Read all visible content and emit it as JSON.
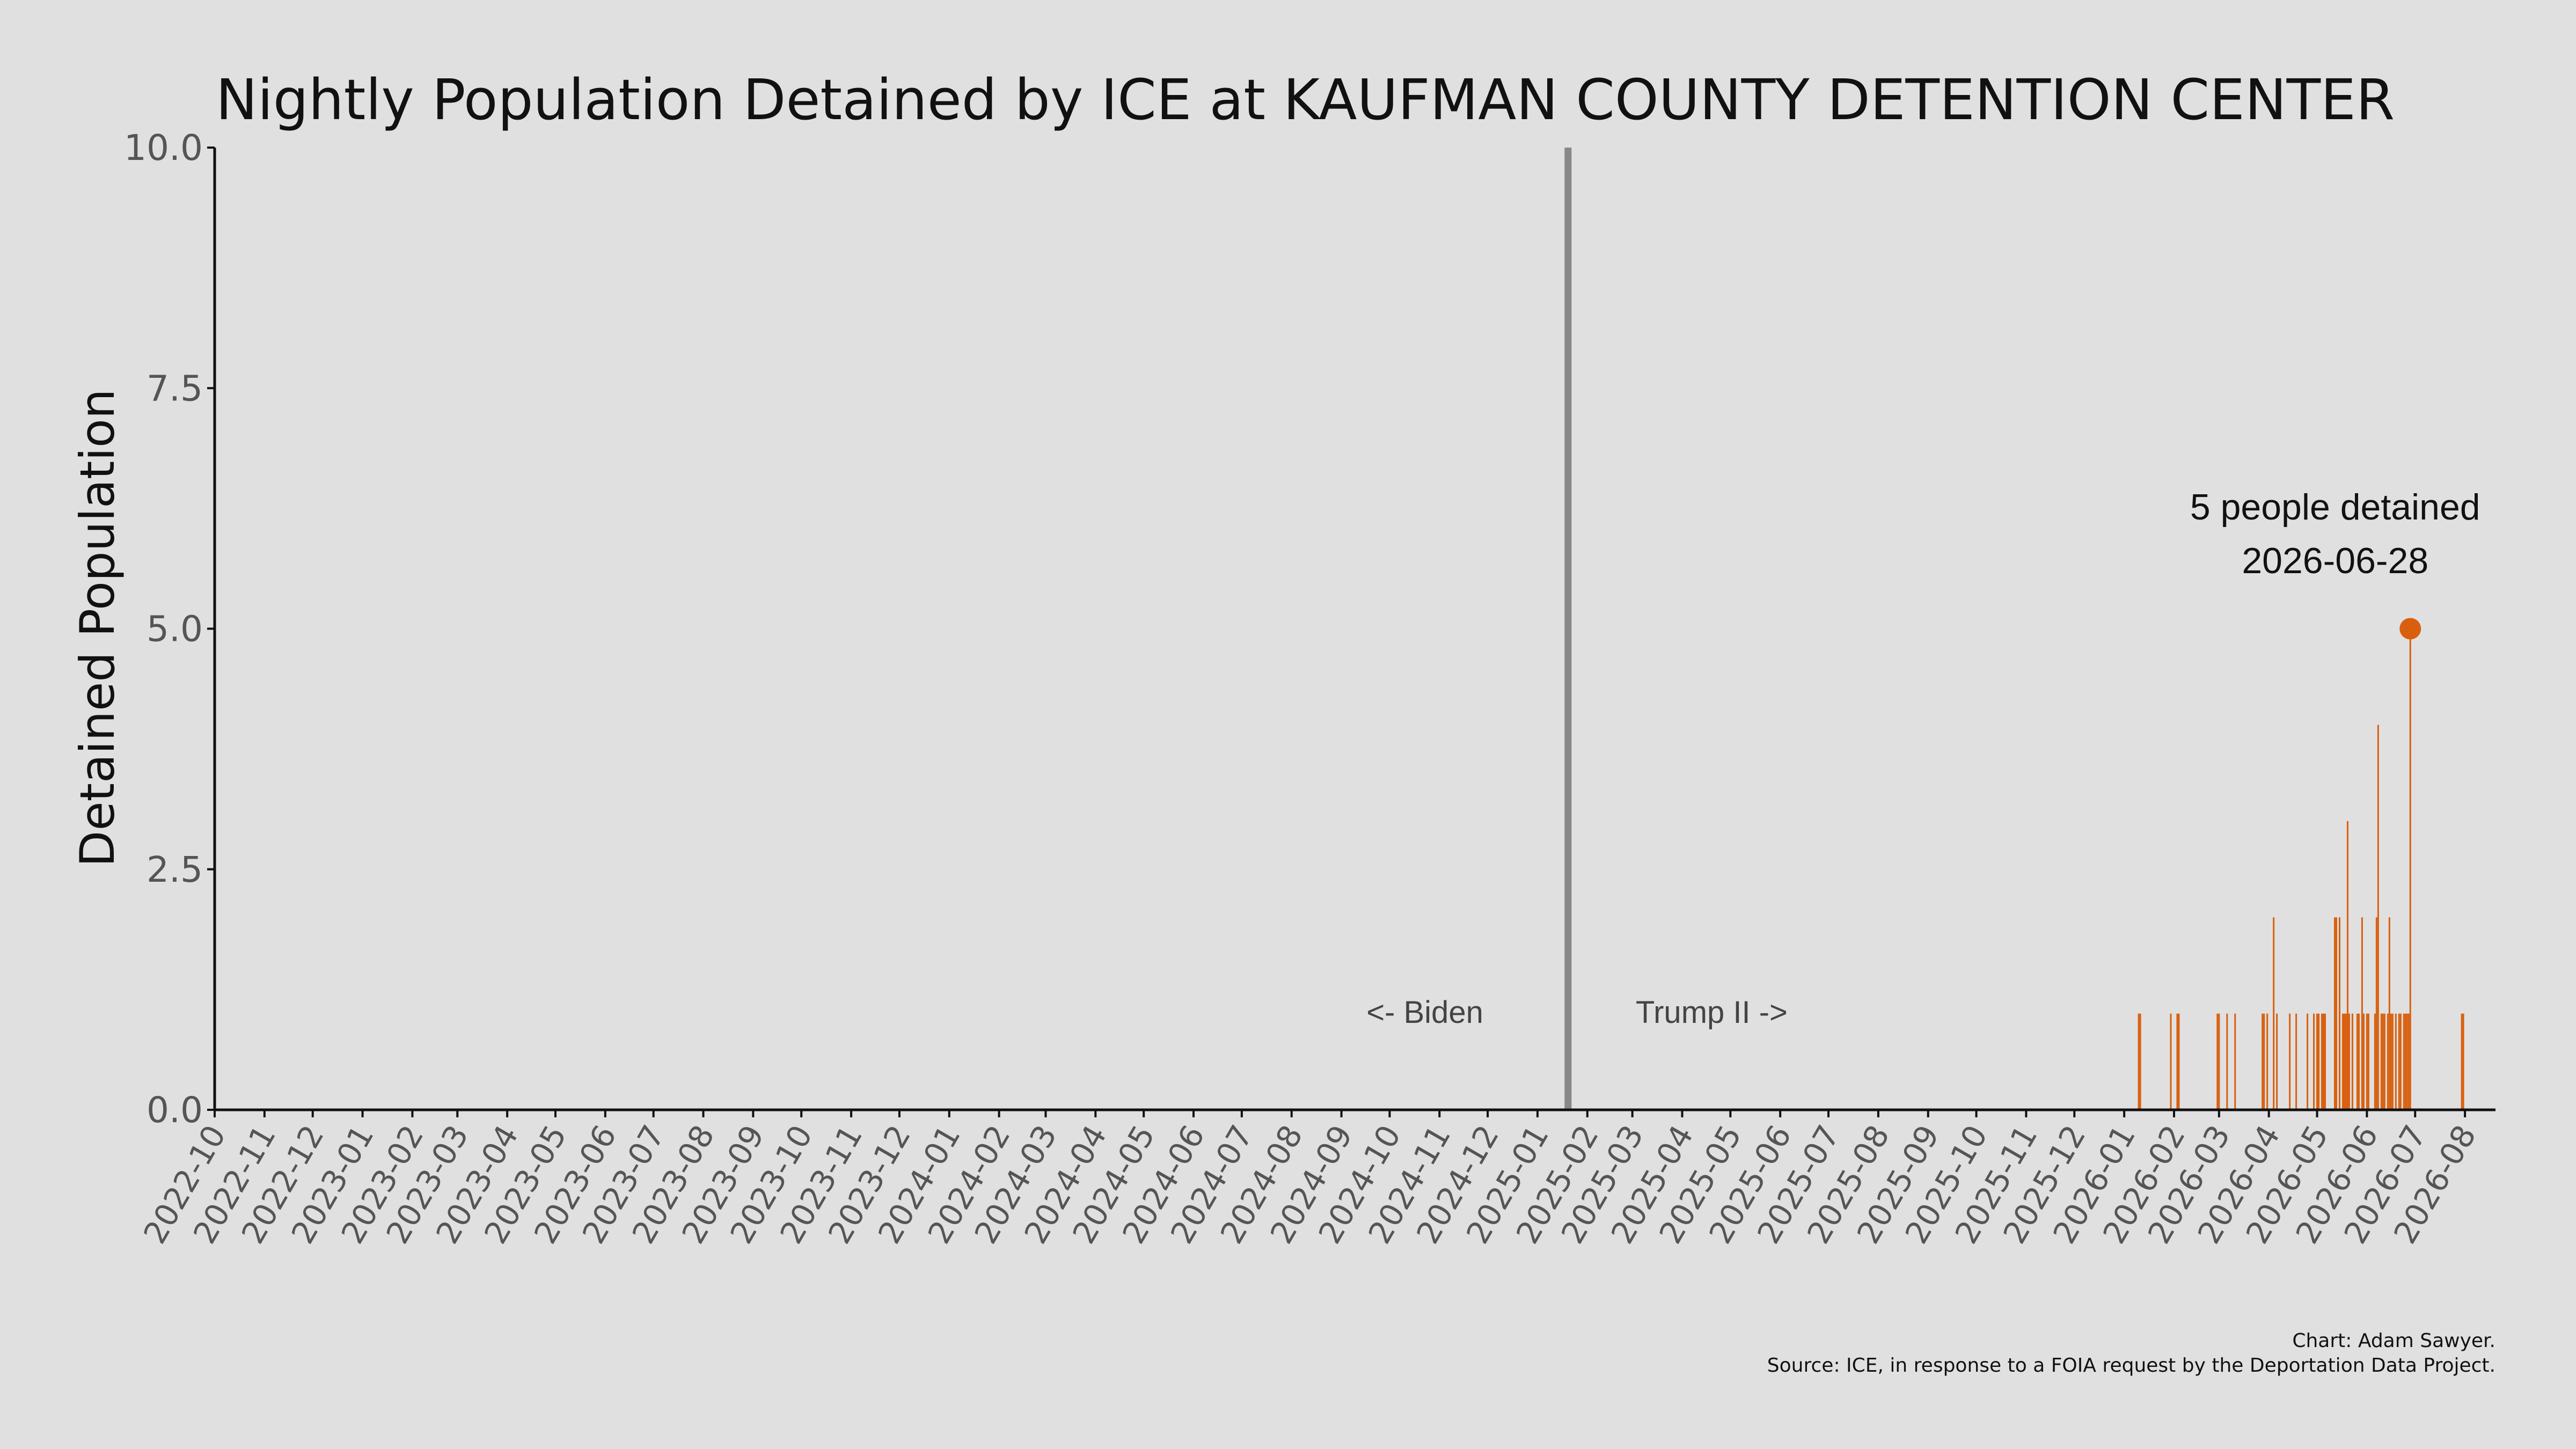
{
  "chart_data": {
    "type": "bar",
    "title": "Nightly Population Detained by ICE at KAUFMAN COUNTY DETENTION CENTER",
    "ylabel": "Detained Population",
    "xlabel": "",
    "ylim": [
      0,
      10
    ],
    "xlim": [
      "2022-10-01",
      "2026-08-20"
    ],
    "y_ticks": [
      "0.0",
      "2.5",
      "5.0",
      "7.5",
      "10.0"
    ],
    "x_ticks": [
      "2022-10",
      "2022-11",
      "2022-12",
      "2023-01",
      "2023-02",
      "2023-03",
      "2023-04",
      "2023-05",
      "2023-06",
      "2023-07",
      "2023-08",
      "2023-09",
      "2023-10",
      "2023-11",
      "2023-12",
      "2024-01",
      "2024-02",
      "2024-03",
      "2024-04",
      "2024-05",
      "2024-06",
      "2024-07",
      "2024-08",
      "2024-09",
      "2024-10",
      "2024-11",
      "2024-12",
      "2025-01",
      "2025-02",
      "2025-03",
      "2025-04",
      "2025-05",
      "2025-06",
      "2025-07",
      "2025-08",
      "2025-09",
      "2025-10",
      "2025-11",
      "2025-12",
      "2026-01",
      "2026-02",
      "2026-03",
      "2026-04",
      "2026-05",
      "2026-06",
      "2026-07",
      "2026-08"
    ],
    "grid": false,
    "legend": "none",
    "color": "#d95f0e",
    "divider_date": "2025-01-20",
    "divider_color": "#888888",
    "era_labels": {
      "left": "<- Biden",
      "right": "Trump II ->"
    },
    "series": [
      {
        "x": [
          "2026-01-10",
          "2026-01-11",
          "2026-01-30",
          "2026-02-03",
          "2026-02-04",
          "2026-02-28",
          "2026-03-01",
          "2026-03-06",
          "2026-03-11",
          "2026-03-28",
          "2026-03-29",
          "2026-03-31",
          "2026-04-04",
          "2026-04-06",
          "2026-04-14",
          "2026-04-18",
          "2026-04-25",
          "2026-04-29",
          "2026-05-01",
          "2026-05-02",
          "2026-05-04",
          "2026-05-05",
          "2026-05-06",
          "2026-05-12",
          "2026-05-13",
          "2026-05-15",
          "2026-05-17",
          "2026-05-18",
          "2026-05-19",
          "2026-05-20",
          "2026-05-21",
          "2026-05-23",
          "2026-05-26",
          "2026-05-27",
          "2026-05-29",
          "2026-05-30",
          "2026-06-01",
          "2026-06-02",
          "2026-06-06",
          "2026-06-07",
          "2026-06-08",
          "2026-06-10",
          "2026-06-11",
          "2026-06-12",
          "2026-06-14",
          "2026-06-15",
          "2026-06-16",
          "2026-06-17",
          "2026-06-19",
          "2026-06-21",
          "2026-06-22",
          "2026-06-24",
          "2026-06-25",
          "2026-06-26",
          "2026-06-27",
          "2026-06-28",
          "2026-07-30",
          "2026-07-31"
        ],
        "values": [
          1,
          1,
          1,
          1,
          1,
          1,
          1,
          1,
          1,
          1,
          1,
          1,
          2,
          1,
          1,
          1,
          1,
          1,
          1,
          1,
          1,
          1,
          1,
          2,
          2,
          2,
          1,
          1,
          1,
          3,
          1,
          1,
          1,
          1,
          2,
          1,
          1,
          1,
          1,
          2,
          4,
          1,
          1,
          1,
          1,
          2,
          1,
          1,
          1,
          1,
          1,
          1,
          1,
          1,
          1,
          5,
          1,
          1
        ]
      }
    ],
    "annotation": {
      "date": "2026-06-28",
      "value": 5,
      "line1": "5 people detained",
      "line2": "2026-06-28"
    },
    "credits": {
      "line1": "Chart: Adam Sawyer.",
      "line2": "Source: ICE, in response to a FOIA request by the Deportation Data Project."
    }
  }
}
